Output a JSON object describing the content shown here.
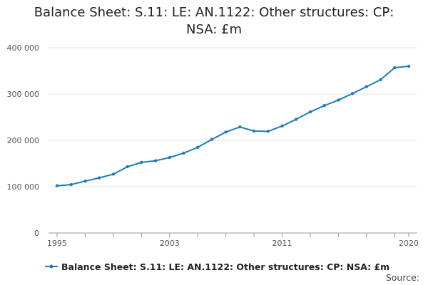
{
  "chart_data": {
    "type": "line",
    "title": "Balance Sheet: S.11: LE: AN.1122: Other structures: CP: NSA: £m",
    "title_lines": [
      "Balance Sheet: S.11: LE: AN.1122: Other structures: CP:",
      "NSA: £m"
    ],
    "xlabel": "",
    "ylabel": "",
    "x": [
      1995,
      1996,
      1997,
      1998,
      1999,
      2000,
      2001,
      2002,
      2003,
      2004,
      2005,
      2006,
      2007,
      2008,
      2009,
      2010,
      2011,
      2012,
      2013,
      2014,
      2015,
      2016,
      2017,
      2018,
      2019,
      2020
    ],
    "series": [
      {
        "name": "Balance Sheet: S.11: LE: AN.1122: Other structures: CP: NSA: £m",
        "color": "#1f7bb6",
        "values": [
          102000,
          104500,
          112000,
          119000,
          127000,
          143000,
          152500,
          156000,
          163000,
          172500,
          185000,
          202000,
          218000,
          229000,
          220000,
          219500,
          231000,
          245500,
          261500,
          275000,
          287000,
          301000,
          316000,
          331000,
          357000,
          360000
        ]
      }
    ],
    "xlim": [
      1995,
      2020
    ],
    "ylim": [
      0,
      400000
    ],
    "y_ticks": [
      0,
      100000,
      200000,
      300000,
      400000
    ],
    "y_tick_labels": [
      "0",
      "100 000",
      "200 000",
      "300 000",
      "400 000"
    ],
    "x_tick_labels": [
      {
        "year": 1995,
        "label": "1995"
      },
      {
        "year": 2003,
        "label": "2003"
      },
      {
        "year": 2011,
        "label": "2011"
      },
      {
        "year": 2020,
        "label": "2020"
      }
    ],
    "x_minor_ticks": [
      1997,
      1999,
      2001,
      2003,
      2005,
      2007,
      2009,
      2011,
      2013,
      2015,
      2017,
      2019
    ],
    "grid": true,
    "legend_placement": "bottom-left",
    "source_label": "Source:"
  }
}
